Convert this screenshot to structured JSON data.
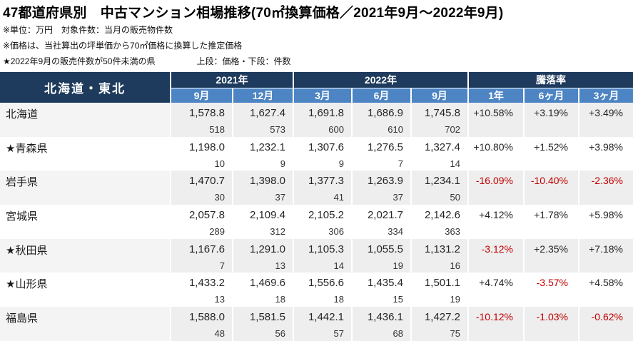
{
  "title": "47都道府県別　中古マンション相場推移(70㎡換算価格／2021年9月～2022年9月)",
  "notes": {
    "note1": "※単位：万円　対象件数：当月の販売物件数",
    "note2": "※価格は、当社算出の坪単価から70㎡価格に換算した推定価格",
    "note3": "★2022年9月の販売件数が50件未満の県",
    "legend": "上段：価格・下段：件数"
  },
  "colors": {
    "header_navy": "#1e3a5c",
    "header_blue": "#4d84c3",
    "stripe_gray": "#eeeeee",
    "negative_red": "#c00000"
  },
  "table": {
    "region": "北海道・東北",
    "year_groups": [
      {
        "label": "2021年"
      },
      {
        "label": "2022年"
      },
      {
        "label": "騰落率"
      }
    ],
    "months": [
      "9月",
      "12月",
      "3月",
      "6月",
      "9月",
      "1年",
      "6ヶ月",
      "3ヶ月"
    ],
    "rows": [
      {
        "name": "北海道",
        "prices": [
          "1,578.8",
          "1,627.4",
          "1,691.8",
          "1,686.9",
          "1,745.8"
        ],
        "counts": [
          "518",
          "573",
          "600",
          "610",
          "702"
        ],
        "changes": [
          "+10.58%",
          "+3.19%",
          "+3.49%"
        ]
      },
      {
        "name": "★青森県",
        "prices": [
          "1,198.0",
          "1,232.1",
          "1,307.6",
          "1,276.5",
          "1,327.4"
        ],
        "counts": [
          "10",
          "9",
          "9",
          "7",
          "14"
        ],
        "changes": [
          "+10.80%",
          "+1.52%",
          "+3.98%"
        ]
      },
      {
        "name": "岩手県",
        "prices": [
          "1,470.7",
          "1,398.0",
          "1,377.3",
          "1,263.9",
          "1,234.1"
        ],
        "counts": [
          "30",
          "37",
          "41",
          "37",
          "50"
        ],
        "changes": [
          "-16.09%",
          "-10.40%",
          "-2.36%"
        ]
      },
      {
        "name": "宮城県",
        "prices": [
          "2,057.8",
          "2,109.4",
          "2,105.2",
          "2,021.7",
          "2,142.6"
        ],
        "counts": [
          "289",
          "312",
          "306",
          "334",
          "363"
        ],
        "changes": [
          "+4.12%",
          "+1.78%",
          "+5.98%"
        ]
      },
      {
        "name": "★秋田県",
        "prices": [
          "1,167.6",
          "1,291.0",
          "1,105.3",
          "1,055.5",
          "1,131.2"
        ],
        "counts": [
          "7",
          "13",
          "14",
          "19",
          "16"
        ],
        "changes": [
          "-3.12%",
          "+2.35%",
          "+7.18%"
        ]
      },
      {
        "name": "★山形県",
        "prices": [
          "1,433.2",
          "1,469.6",
          "1,556.6",
          "1,435.4",
          "1,501.1"
        ],
        "counts": [
          "13",
          "18",
          "18",
          "15",
          "19"
        ],
        "changes": [
          "+4.74%",
          "-3.57%",
          "+4.58%"
        ]
      },
      {
        "name": "福島県",
        "prices": [
          "1,588.0",
          "1,581.5",
          "1,442.1",
          "1,436.1",
          "1,427.2"
        ],
        "counts": [
          "48",
          "56",
          "57",
          "68",
          "75"
        ],
        "changes": [
          "-10.12%",
          "-1.03%",
          "-0.62%"
        ]
      }
    ]
  }
}
